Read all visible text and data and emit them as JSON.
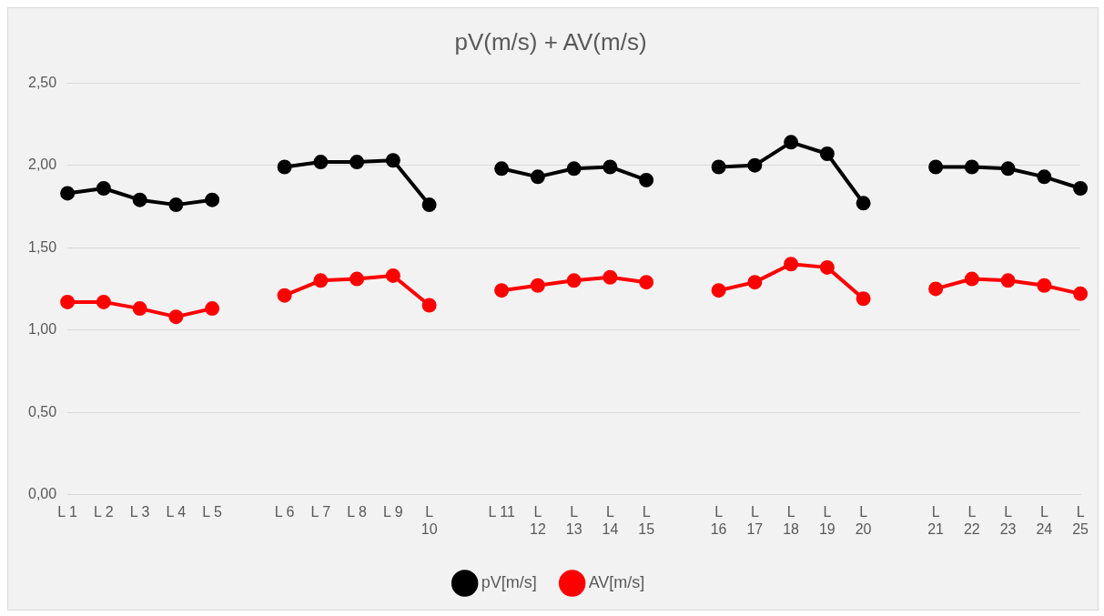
{
  "chart_data": {
    "type": "line",
    "title": "pV(m/s) + AV(m/s)",
    "categories": [
      "L 1",
      "L 2",
      "L 3",
      "L 4",
      "L 5",
      null,
      "L 6",
      "L 7",
      "L 8",
      "L 9",
      "L 10",
      null,
      "L 11",
      "L 12",
      "L 13",
      "L 14",
      "L 15",
      null,
      "L 16",
      "L 17",
      "L 18",
      "L 19",
      "L 20",
      null,
      "L 21",
      "L 22",
      "L 23",
      "L 24",
      "L 25"
    ],
    "series": [
      {
        "name": "pV[m/s]",
        "color": "#000000",
        "values": [
          1.83,
          1.86,
          1.79,
          1.76,
          1.79,
          null,
          1.99,
          2.02,
          2.02,
          2.03,
          1.76,
          null,
          1.98,
          1.93,
          1.98,
          1.99,
          1.91,
          null,
          1.99,
          2.0,
          2.14,
          2.07,
          1.77,
          null,
          1.99,
          1.99,
          1.98,
          1.93,
          1.86
        ]
      },
      {
        "name": "AV[m/s]",
        "color": "#ff0000",
        "values": [
          1.17,
          1.17,
          1.13,
          1.08,
          1.13,
          null,
          1.21,
          1.3,
          1.31,
          1.33,
          1.15,
          null,
          1.24,
          1.27,
          1.3,
          1.32,
          1.29,
          null,
          1.24,
          1.29,
          1.4,
          1.38,
          1.19,
          null,
          1.25,
          1.31,
          1.3,
          1.27,
          1.22
        ]
      }
    ],
    "ylim": [
      0,
      2.5
    ],
    "yticks": [
      {
        "value": 0,
        "label": "0,00"
      },
      {
        "value": 0.5,
        "label": "0,50"
      },
      {
        "value": 1,
        "label": "1,00"
      },
      {
        "value": 1.5,
        "label": "1,50"
      },
      {
        "value": 2,
        "label": "2,00"
      },
      {
        "value": 2.5,
        "label": "2,50"
      }
    ],
    "grid": "y",
    "legend": "bottom",
    "marker": "circle",
    "line_style": "solid"
  }
}
